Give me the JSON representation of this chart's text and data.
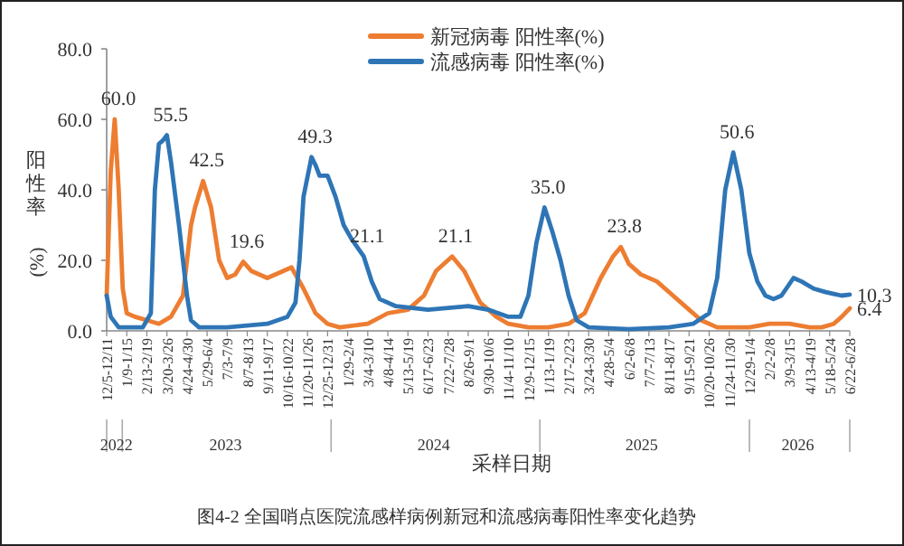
{
  "chart_data": {
    "type": "line",
    "xlabel": "采样日期",
    "ylabel": "阳性率(%)",
    "legend": "top",
    "xlim": [
      "2022-12-05",
      "2026-06-22"
    ],
    "xticks": [
      {
        "value": "2022-12-05",
        "label": "12/5-12/11"
      },
      {
        "value": "2023-01-09",
        "label": "1/9-1/15"
      },
      {
        "value": "2023-02-13",
        "label": "2/13-2/19"
      },
      {
        "value": "2023-03-20",
        "label": "3/20-3/26"
      },
      {
        "value": "2023-04-24",
        "label": "4/24-4/30"
      },
      {
        "value": "2023-05-29",
        "label": "5/29-6/4"
      },
      {
        "value": "2023-07-03",
        "label": "7/3-7/9"
      },
      {
        "value": "2023-08-07",
        "label": "8/7-8/13"
      },
      {
        "value": "2023-09-11",
        "label": "9/11-9/17"
      },
      {
        "value": "2023-10-16",
        "label": "10/16-10/22"
      },
      {
        "value": "2023-11-20",
        "label": "11/20-11/26"
      },
      {
        "value": "2023-12-25",
        "label": "12/25-12/31"
      },
      {
        "value": "2024-01-29",
        "label": "1/29-2/4"
      },
      {
        "value": "2024-03-04",
        "label": "3/4-3/10"
      },
      {
        "value": "2024-04-08",
        "label": "4/8-4/14"
      },
      {
        "value": "2024-05-13",
        "label": "5/13-5/19"
      },
      {
        "value": "2024-06-17",
        "label": "6/17-6/23"
      },
      {
        "value": "2024-07-22",
        "label": "7/22-7/28"
      },
      {
        "value": "2024-08-26",
        "label": "8/26-9/1"
      },
      {
        "value": "2024-09-30",
        "label": "9/30-10/6"
      },
      {
        "value": "2024-11-04",
        "label": "11/4-11/10"
      },
      {
        "value": "2024-12-09",
        "label": "12/9-12/15"
      },
      {
        "value": "2025-01-13",
        "label": "1/13-1/19"
      },
      {
        "value": "2025-02-17",
        "label": "2/17-2/23"
      },
      {
        "value": "2025-03-24",
        "label": "3/24-3/30"
      },
      {
        "value": "2025-04-28",
        "label": "4/28-5/4"
      },
      {
        "value": "2025-06-02",
        "label": "6/2-6/8"
      },
      {
        "value": "2025-07-07",
        "label": "7/7-7/13"
      },
      {
        "value": "2025-08-11",
        "label": "8/11-8/17"
      },
      {
        "value": "2025-09-15",
        "label": "9/15-9/21"
      },
      {
        "value": "2025-10-20",
        "label": "10/20-10/26"
      },
      {
        "value": "2025-11-24",
        "label": "11/24-11/30"
      },
      {
        "value": "2025-12-29",
        "label": "12/29-1/4"
      },
      {
        "value": "2026-02-02",
        "label": "2/2-2/8"
      },
      {
        "value": "2026-03-09",
        "label": "3/9-3/15"
      },
      {
        "value": "2026-04-13",
        "label": "4/13-4/19"
      },
      {
        "value": "2026-05-18",
        "label": "5/18-5/24"
      },
      {
        "value": "2026-06-22",
        "label": "6/22-6/28"
      }
    ],
    "ylim": [
      0,
      80
    ],
    "yticks": [
      {
        "value": 0,
        "label": "0.0"
      },
      {
        "value": 20,
        "label": "20.0"
      },
      {
        "value": 40,
        "label": "40.0"
      },
      {
        "value": 60,
        "label": "60.0"
      },
      {
        "value": 80,
        "label": "80.0"
      }
    ],
    "series": [
      {
        "name": "新冠病毒 阳性率(%)",
        "color": "#ed7d31",
        "x": [
          "2022-12-05",
          "2022-12-12",
          "2022-12-19",
          "2022-12-26",
          "2023-01-02",
          "2023-01-09",
          "2023-01-23",
          "2023-02-13",
          "2023-03-06",
          "2023-03-27",
          "2023-04-17",
          "2023-05-01",
          "2023-05-08",
          "2023-05-22",
          "2023-06-05",
          "2023-06-19",
          "2023-07-03",
          "2023-07-17",
          "2023-07-31",
          "2023-08-14",
          "2023-09-11",
          "2023-10-09",
          "2023-10-23",
          "2023-11-13",
          "2023-12-04",
          "2023-12-25",
          "2024-01-15",
          "2024-03-04",
          "2024-04-08",
          "2024-05-13",
          "2024-06-10",
          "2024-07-01",
          "2024-07-29",
          "2024-08-19",
          "2024-09-16",
          "2024-10-14",
          "2024-11-04",
          "2024-12-09",
          "2025-01-13",
          "2025-02-17",
          "2025-03-17",
          "2025-04-14",
          "2025-05-05",
          "2025-05-19",
          "2025-06-02",
          "2025-06-23",
          "2025-07-21",
          "2025-08-18",
          "2025-09-15",
          "2025-10-06",
          "2025-11-03",
          "2025-12-29",
          "2026-02-02",
          "2026-03-09",
          "2026-04-13",
          "2026-05-04",
          "2026-05-25",
          "2026-06-08",
          "2026-06-22"
        ],
        "values": [
          10,
          45,
          60,
          40,
          12,
          5,
          4,
          3,
          2,
          4,
          10,
          30,
          35,
          42.5,
          35,
          20,
          15,
          16,
          19.6,
          17,
          15,
          17,
          18,
          12,
          5,
          2,
          1,
          2,
          5,
          6,
          10,
          17,
          21.1,
          17,
          8,
          4,
          2,
          1,
          1,
          2,
          5,
          15,
          21,
          23.8,
          19,
          16,
          14,
          10,
          6,
          3,
          1,
          1,
          2,
          2,
          1,
          1,
          2,
          4,
          6.4
        ]
      },
      {
        "name": "流感病毒 阳性率(%)",
        "color": "#2e75b6",
        "x": [
          "2022-12-05",
          "2022-12-12",
          "2022-12-26",
          "2023-02-06",
          "2023-02-20",
          "2023-02-27",
          "2023-03-06",
          "2023-03-13",
          "2023-03-20",
          "2023-03-27",
          "2023-04-10",
          "2023-04-24",
          "2023-05-01",
          "2023-05-15",
          "2023-07-03",
          "2023-09-11",
          "2023-10-16",
          "2023-10-30",
          "2023-11-06",
          "2023-11-13",
          "2023-11-27",
          "2023-12-04",
          "2023-12-11",
          "2023-12-25",
          "2024-01-08",
          "2024-01-22",
          "2024-02-05",
          "2024-02-26",
          "2024-03-11",
          "2024-03-25",
          "2024-04-22",
          "2024-06-17",
          "2024-08-26",
          "2024-09-30",
          "2024-11-04",
          "2024-11-25",
          "2024-12-09",
          "2024-12-23",
          "2025-01-06",
          "2025-01-20",
          "2025-02-03",
          "2025-02-17",
          "2025-03-03",
          "2025-03-24",
          "2025-06-02",
          "2025-08-11",
          "2025-09-22",
          "2025-10-20",
          "2025-11-03",
          "2025-11-17",
          "2025-12-01",
          "2025-12-15",
          "2025-12-29",
          "2026-01-12",
          "2026-01-26",
          "2026-02-09",
          "2026-02-23",
          "2026-03-16",
          "2026-03-30",
          "2026-04-20",
          "2026-05-11",
          "2026-05-25",
          "2026-06-08",
          "2026-06-22"
        ],
        "values": [
          10,
          4,
          1,
          1,
          5,
          40,
          53,
          54,
          55.5,
          48,
          30,
          10,
          3,
          1,
          1,
          2,
          4,
          8,
          20,
          38,
          49.3,
          47,
          44,
          44,
          38,
          30,
          26,
          21.1,
          14,
          9,
          7,
          6,
          7,
          6,
          4,
          4,
          10,
          25,
          35,
          28,
          20,
          10,
          3,
          1,
          0.5,
          1,
          2,
          5,
          15,
          40,
          50.6,
          40,
          22,
          14,
          10,
          9,
          10,
          15,
          14,
          12,
          11,
          10.5,
          10,
          10.3
        ]
      }
    ],
    "annotations": [
      {
        "text": "60.0",
        "x": "2022-12-19",
        "y": 60
      },
      {
        "text": "55.5",
        "x": "2023-03-20",
        "y": 55.5
      },
      {
        "text": "42.5",
        "x": "2023-05-22",
        "y": 42.5
      },
      {
        "text": "19.6",
        "x": "2023-07-31",
        "y": 19.6
      },
      {
        "text": "49.3",
        "x": "2023-11-27",
        "y": 49.3
      },
      {
        "text": "21.1",
        "x": "2024-02-26",
        "y": 21.1
      },
      {
        "text": "21.1",
        "x": "2024-07-29",
        "y": 21.1
      },
      {
        "text": "35.0",
        "x": "2025-01-06",
        "y": 35
      },
      {
        "text": "23.8",
        "x": "2025-05-19",
        "y": 23.8
      },
      {
        "text": "50.6",
        "x": "2025-12-01",
        "y": 50.6
      },
      {
        "text": "10.3",
        "x": "2026-06-22",
        "y": 10.3
      },
      {
        "text": "6.4",
        "x": "2026-06-22",
        "y": 6.4
      },
      "2022",
      "2023",
      "2024",
      "2025",
      "2026",
      "图4-2 全国哨点医院流感样病例新冠和流感病毒阳性率变化趋势"
    ]
  }
}
